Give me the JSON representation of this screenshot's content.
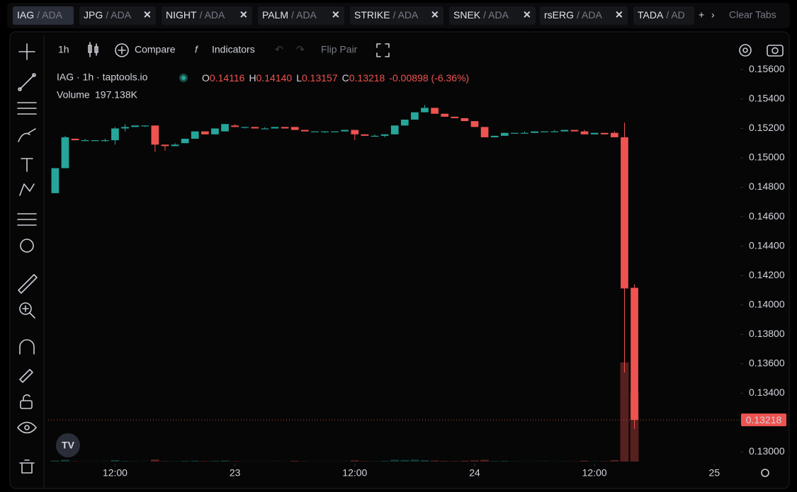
{
  "tabs": [
    {
      "symbol": "IAG",
      "quote": "/ ADA"
    },
    {
      "symbol": "JPG",
      "quote": "/ ADA"
    },
    {
      "symbol": "NIGHT",
      "quote": "/ ADA"
    },
    {
      "symbol": "PALM",
      "quote": "/ ADA"
    },
    {
      "symbol": "STRIKE",
      "quote": "/ ADA"
    },
    {
      "symbol": "SNEK",
      "quote": "/ ADA"
    },
    {
      "symbol": "rsERG",
      "quote": "/ ADA"
    },
    {
      "symbol": "TADA",
      "quote": "/ AD"
    }
  ],
  "clear_tabs": "Clear Tabs",
  "toolbar": {
    "interval": "1h",
    "compare": "Compare",
    "indicators": "Indicators",
    "flip_pair": "Flip Pair"
  },
  "legend": {
    "title": "IAG · 1h · taptools.io",
    "o": "O",
    "open": "0.14116",
    "h": "H",
    "high": "0.14140",
    "l": "L",
    "low": "0.13157",
    "c": "C",
    "close": "0.13218",
    "change": "-0.00898 (-6.36%)",
    "volume_label": "Volume",
    "volume": "197.138K"
  },
  "chart_data": {
    "type": "candlestick",
    "up_color": "#26a69a",
    "down_color": "#ef5350",
    "x": [
      6,
      7,
      8,
      9,
      10,
      11,
      12,
      13,
      14,
      15,
      16,
      17,
      18,
      19,
      20,
      21,
      22,
      23,
      24,
      25,
      26,
      27,
      28,
      29,
      30,
      31,
      32,
      33,
      34,
      35,
      36,
      37,
      38,
      39,
      40,
      41,
      42,
      43,
      44,
      45,
      46,
      47,
      48,
      49,
      50,
      51,
      52,
      53,
      54,
      55,
      56,
      57,
      58,
      59,
      60,
      61,
      62,
      63,
      64
    ],
    "open": [
      0.1476,
      0.1493,
      0.1513,
      0.1512,
      0.1512,
      0.1512,
      0.1512,
      0.152,
      0.1521,
      0.1522,
      0.1522,
      0.1509,
      0.1508,
      0.151,
      0.1513,
      0.1518,
      0.1516,
      0.1518,
      0.1522,
      0.1521,
      0.1521,
      0.152,
      0.152,
      0.1521,
      0.1521,
      0.1519,
      0.1518,
      0.1518,
      0.1518,
      0.1518,
      0.1519,
      0.1516,
      0.1515,
      0.1515,
      0.1516,
      0.1522,
      0.1526,
      0.1531,
      0.1534,
      0.153,
      0.1528,
      0.1527,
      0.1525,
      0.1521,
      0.1514,
      0.1515,
      0.1517,
      0.1517,
      0.1517,
      0.1518,
      0.1518,
      0.1518,
      0.1519,
      0.1518,
      0.1516,
      0.1517,
      0.1517,
      0.1514,
      0.14116
    ],
    "high": [
      0.1493,
      0.1515,
      0.1513,
      0.1513,
      0.1512,
      0.1513,
      0.1521,
      0.1523,
      0.1522,
      0.1522,
      0.1522,
      0.1509,
      0.151,
      0.1513,
      0.1518,
      0.1518,
      0.152,
      0.1523,
      0.1523,
      0.1521,
      0.1521,
      0.1521,
      0.1521,
      0.1521,
      0.1521,
      0.1519,
      0.1518,
      0.1518,
      0.1518,
      0.1519,
      0.1519,
      0.1516,
      0.1516,
      0.1516,
      0.1522,
      0.1526,
      0.1531,
      0.1536,
      0.1534,
      0.153,
      0.1528,
      0.1527,
      0.1525,
      0.1521,
      0.1515,
      0.1517,
      0.1517,
      0.1518,
      0.1518,
      0.1518,
      0.1519,
      0.1519,
      0.1519,
      0.1519,
      0.1517,
      0.1517,
      0.1518,
      0.1524,
      0.1414
    ],
    "low": [
      0.1476,
      0.1493,
      0.1512,
      0.1512,
      0.1512,
      0.1511,
      0.1509,
      0.1518,
      0.1521,
      0.1521,
      0.1504,
      0.1505,
      0.1508,
      0.151,
      0.1513,
      0.1516,
      0.1516,
      0.1518,
      0.1521,
      0.152,
      0.152,
      0.152,
      0.152,
      0.152,
      0.1519,
      0.1518,
      0.1518,
      0.1517,
      0.1518,
      0.1518,
      0.1512,
      0.1515,
      0.1515,
      0.1514,
      0.1516,
      0.1522,
      0.1526,
      0.1531,
      0.153,
      0.1528,
      0.1527,
      0.1525,
      0.1521,
      0.1514,
      0.1514,
      0.1515,
      0.1517,
      0.1517,
      0.1517,
      0.1518,
      0.1518,
      0.1518,
      0.1518,
      0.1516,
      0.1516,
      0.1516,
      0.1514,
      0.1354,
      0.13157
    ],
    "close": [
      0.1493,
      0.1514,
      0.1512,
      0.1512,
      0.1512,
      0.1512,
      0.152,
      0.1521,
      0.1522,
      0.1522,
      0.1509,
      0.1508,
      0.1509,
      0.1513,
      0.1518,
      0.1516,
      0.152,
      0.1523,
      0.1521,
      0.1521,
      0.152,
      0.152,
      0.1521,
      0.152,
      0.1519,
      0.1518,
      0.1518,
      0.1518,
      0.1518,
      0.1519,
      0.1516,
      0.1515,
      0.1515,
      0.1516,
      0.1522,
      0.1526,
      0.1531,
      0.1534,
      0.153,
      0.1528,
      0.1527,
      0.1525,
      0.1521,
      0.1514,
      0.1515,
      0.1517,
      0.1517,
      0.1517,
      0.1518,
      0.1518,
      0.1518,
      0.1519,
      0.1518,
      0.1516,
      0.1517,
      0.1516,
      0.1514,
      0.14112,
      0.13218
    ],
    "volume": [
      3000,
      5000,
      800,
      600,
      500,
      700,
      4000,
      1500,
      800,
      600,
      6000,
      1200,
      900,
      1800,
      2500,
      1500,
      2000,
      3000,
      1000,
      500,
      400,
      600,
      700,
      500,
      2200,
      800,
      500,
      600,
      500,
      700,
      3500,
      1200,
      900,
      1800,
      5000,
      4500,
      5500,
      4000,
      3000,
      2000,
      1500,
      2500,
      3500,
      5000,
      1500,
      2000,
      800,
      600,
      700,
      900,
      600,
      800,
      700,
      2500,
      900,
      1200,
      4000,
      284500,
      197138
    ],
    "last_label": "0.13218",
    "xlim": [
      5.3,
      74.6
    ],
    "xticks": [
      {
        "value": 12,
        "label": "12:00"
      },
      {
        "value": 24,
        "label": "23"
      },
      {
        "value": 36,
        "label": "12:00"
      },
      {
        "value": 48,
        "label": "24"
      },
      {
        "value": 60,
        "label": "12:00"
      },
      {
        "value": 72,
        "label": "25"
      }
    ],
    "ylim": [
      0.1292,
      0.1565
    ],
    "yticks": [
      {
        "value": 0.13,
        "label": "0.13000"
      },
      {
        "value": 0.132,
        "label": "0.13200"
      },
      {
        "value": 0.134,
        "label": "0.13400"
      },
      {
        "value": 0.136,
        "label": "0.13600"
      },
      {
        "value": 0.138,
        "label": "0.13800"
      },
      {
        "value": 0.14,
        "label": "0.14000"
      },
      {
        "value": 0.142,
        "label": "0.14200"
      },
      {
        "value": 0.144,
        "label": "0.14400"
      },
      {
        "value": 0.146,
        "label": "0.14600"
      },
      {
        "value": 0.148,
        "label": "0.14800"
      },
      {
        "value": 0.15,
        "label": "0.15000"
      },
      {
        "value": 0.152,
        "label": "0.15200"
      },
      {
        "value": 0.154,
        "label": "0.15400"
      },
      {
        "value": 0.156,
        "label": "0.15600"
      }
    ],
    "grid": false
  }
}
